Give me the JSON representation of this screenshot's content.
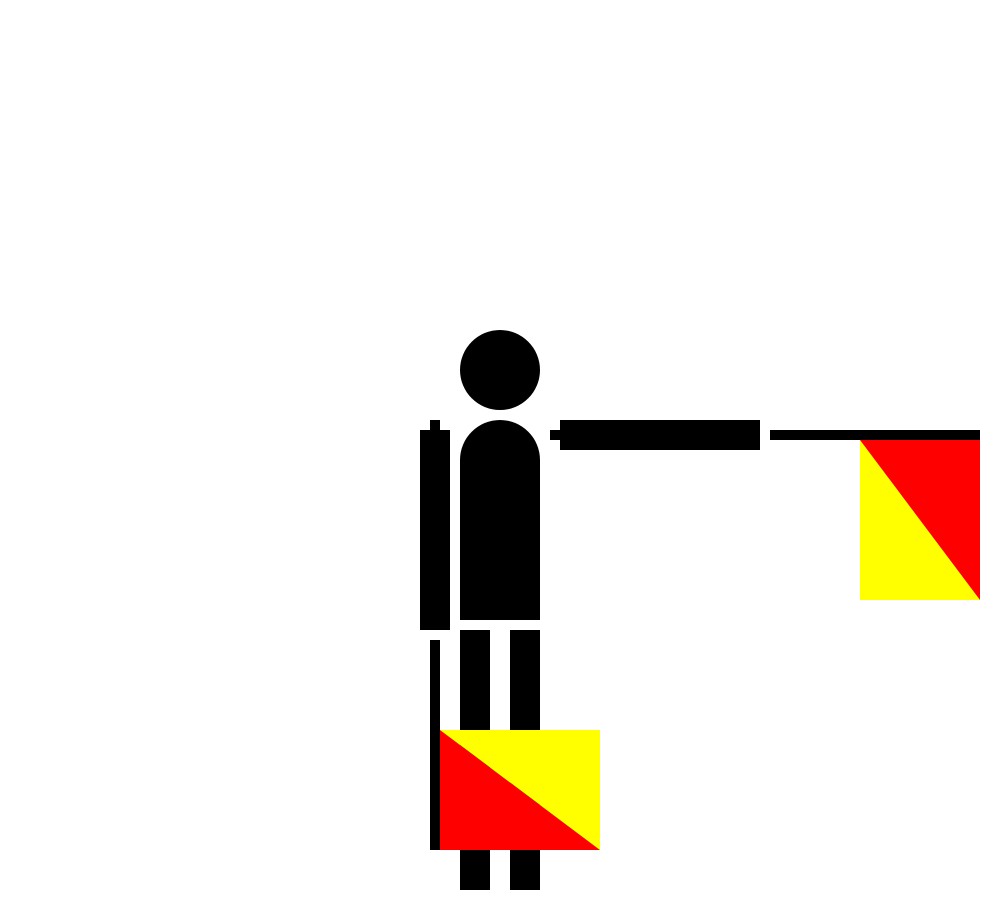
{
  "figure": {
    "subject": "semaphore-signaller",
    "colors": {
      "figure": "#000000",
      "flag_red": "#ff0000",
      "flag_yellow": "#ffff00",
      "background": "#ffffff"
    },
    "icons": [
      "person-icon",
      "semaphore-flag-icon"
    ]
  }
}
